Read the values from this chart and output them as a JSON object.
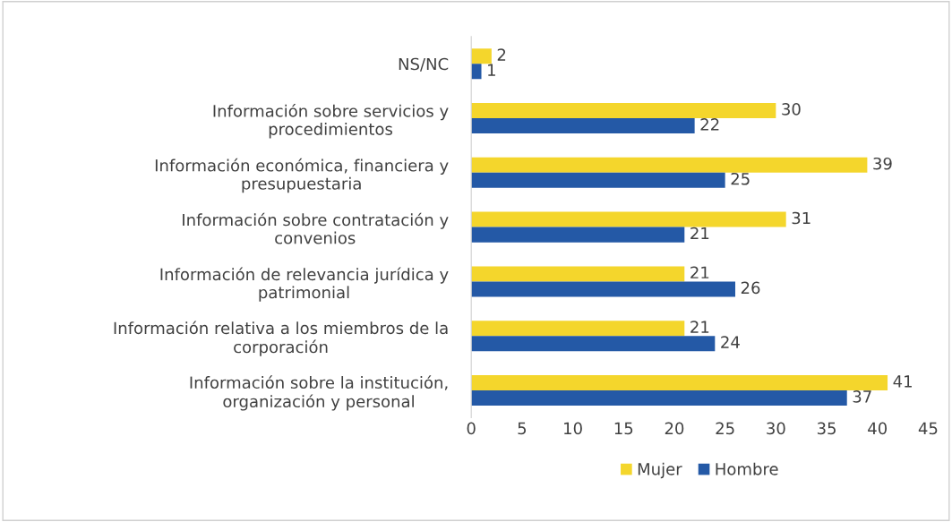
{
  "chart_data": {
    "type": "bar",
    "orientation": "horizontal",
    "categories": [
      "NS/NC",
      "Información sobre servicios y\nprocedimientos",
      "Información económica, financiera y\npresupuestaria",
      "Información sobre contratación y\nconvenios",
      "Información de relevancia jurídica y\npatrimonial",
      "Información relativa a los miembros de la\ncorporación",
      "Información sobre la institución,\norganización y personal"
    ],
    "series": [
      {
        "name": "Mujer",
        "color": "#f4d62c",
        "values": [
          2,
          30,
          39,
          31,
          21,
          21,
          41
        ]
      },
      {
        "name": "Hombre",
        "color": "#2459a6",
        "values": [
          1,
          22,
          25,
          21,
          26,
          24,
          37
        ]
      }
    ],
    "xlim": [
      0,
      45
    ],
    "xticks": [
      0,
      5,
      10,
      15,
      20,
      25,
      30,
      35,
      40,
      45
    ],
    "data_labels": true,
    "grid": false,
    "legend": "bottom"
  }
}
